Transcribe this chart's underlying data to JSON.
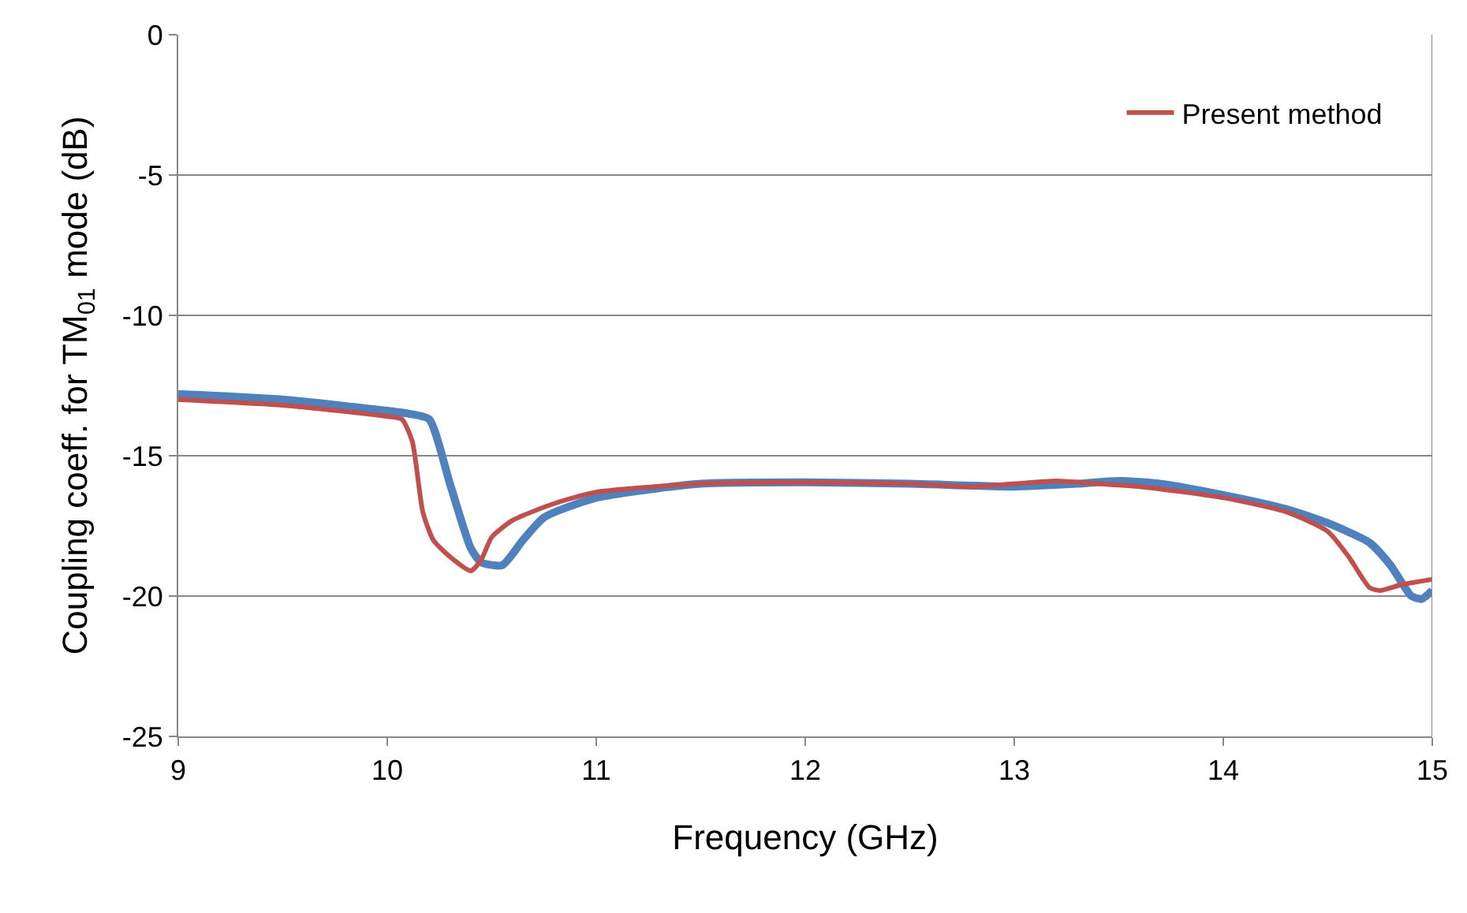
{
  "chart_data": {
    "type": "line",
    "xlabel": "Frequency (GHz)",
    "ylabel": "Coupling coeff. for TM$_{01}$ mode (dB)",
    "xlim": [
      9,
      15
    ],
    "xticks": [
      9,
      10,
      11,
      12,
      13,
      14,
      15
    ],
    "ylim": [
      -25,
      0
    ],
    "yticks": [
      -25,
      -20,
      -15,
      -10,
      -5,
      0
    ],
    "grid": "y",
    "legend": "top right",
    "marker": "none",
    "line_style": "solid",
    "series": [
      {
        "color": "#4f81bd",
        "x": [
          9,
          9.5,
          10,
          10.1,
          10.2,
          10.3,
          10.4,
          10.45,
          10.55,
          10.65,
          10.75,
          11,
          11.5,
          12,
          12.5,
          13,
          13.3,
          13.5,
          13.7,
          14,
          14.3,
          14.5,
          14.7,
          14.8,
          14.9,
          14.95,
          15
        ],
        "values": [
          -12.8,
          -13.0,
          -13.4,
          -13.5,
          -13.7,
          -16.0,
          -18.3,
          -18.8,
          -18.9,
          -18.0,
          -17.2,
          -16.5,
          -16.0,
          -15.95,
          -16.0,
          -16.1,
          -16.0,
          -15.9,
          -16.0,
          -16.4,
          -16.9,
          -17.4,
          -18.1,
          -18.9,
          -20.0,
          -20.1,
          -19.8
        ]
      },
      {
        "name": "Present method",
        "color": "#c0504d",
        "x": [
          9,
          9.5,
          10,
          10.07,
          10.12,
          10.17,
          10.22,
          10.3,
          10.4,
          10.45,
          10.5,
          10.6,
          10.8,
          11,
          11.5,
          12,
          12.5,
          12.8,
          13.0,
          13.2,
          13.4,
          13.6,
          14,
          14.3,
          14.5,
          14.6,
          14.7,
          14.75,
          14.85,
          15
        ],
        "values": [
          -13.0,
          -13.2,
          -13.6,
          -13.7,
          -14.5,
          -17.0,
          -18.0,
          -18.6,
          -19.1,
          -18.7,
          -17.9,
          -17.3,
          -16.7,
          -16.3,
          -16.0,
          -15.95,
          -16.0,
          -16.1,
          -16.0,
          -15.9,
          -16.0,
          -16.1,
          -16.5,
          -17.0,
          -17.7,
          -18.6,
          -19.7,
          -19.8,
          -19.6,
          -19.4
        ]
      }
    ]
  }
}
